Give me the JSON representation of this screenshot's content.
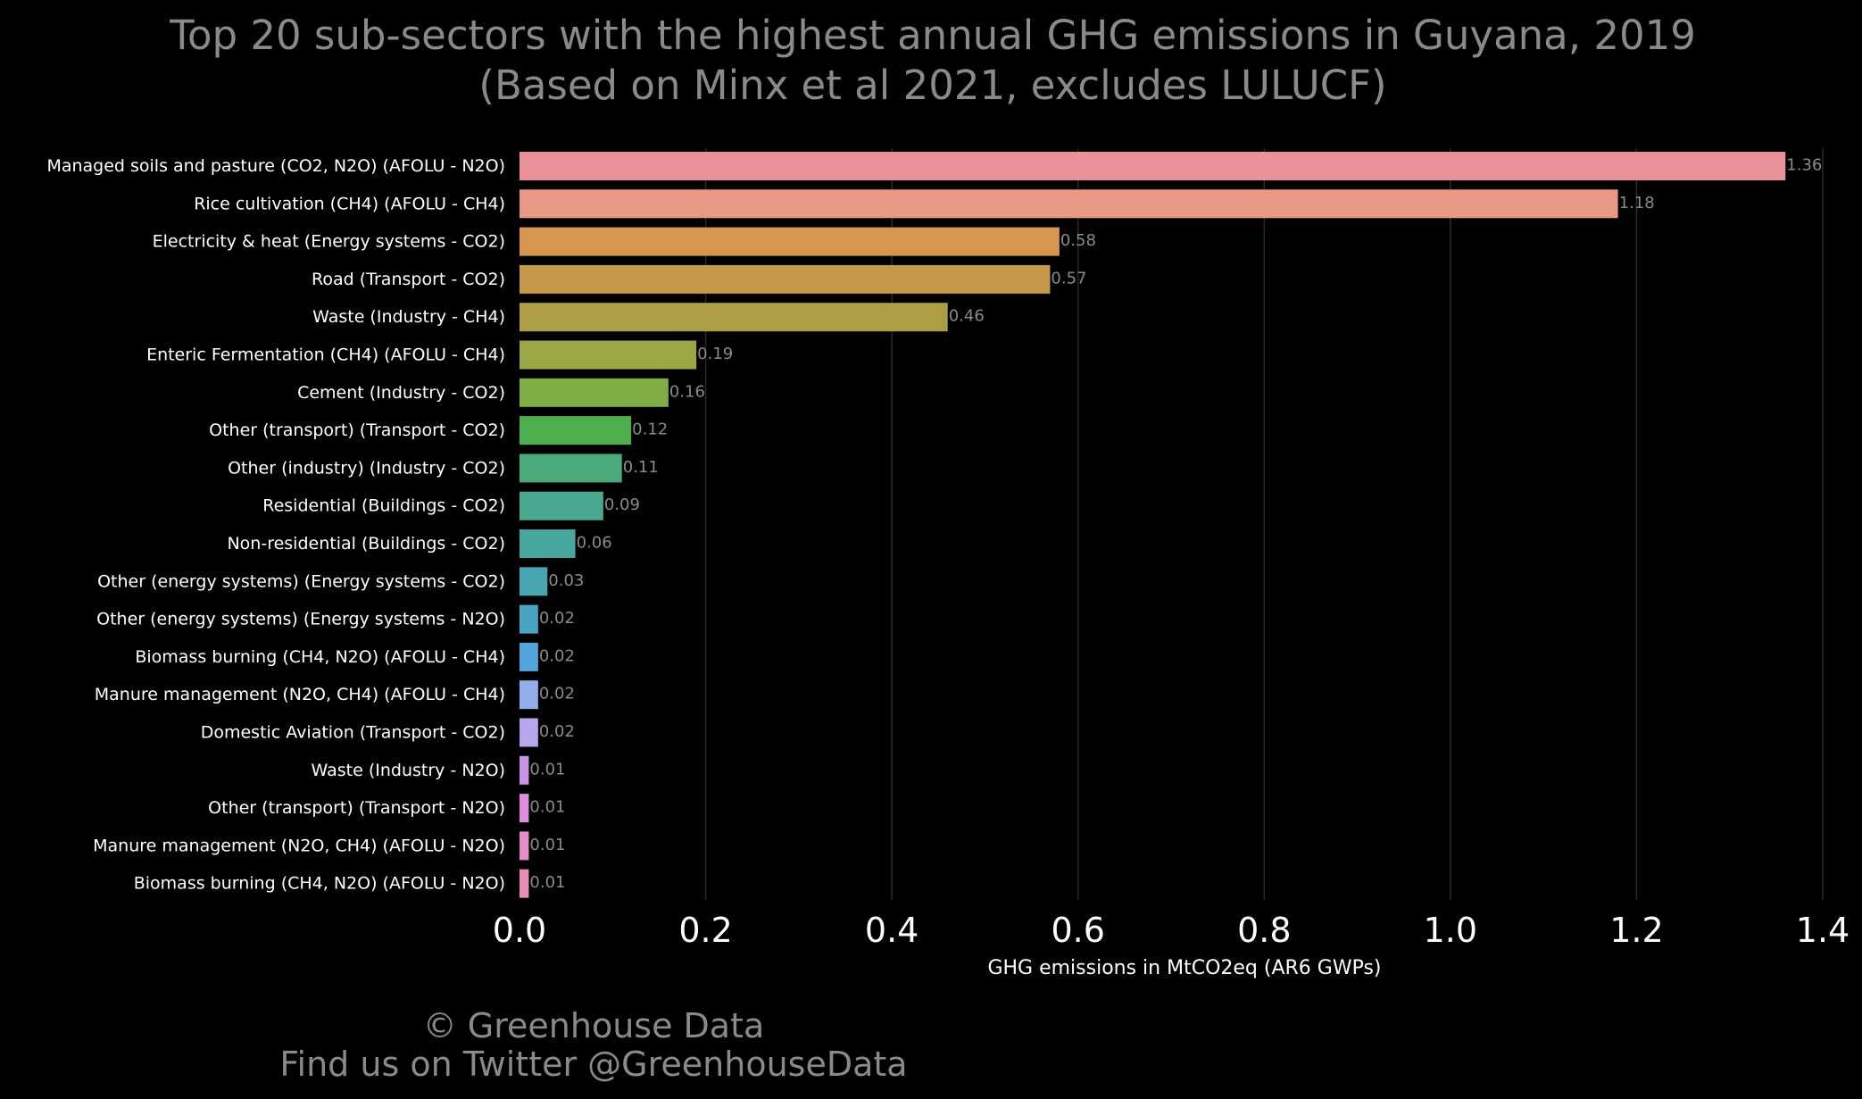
{
  "title_line_1": "Top 20 sub-sectors with the highest annual GHG emissions in Guyana, 2019",
  "title_line_2": "(Based on Minx et al 2021, excludes LULUCF)",
  "footer_line_1": "© Greenhouse Data",
  "footer_line_2": "Find us on Twitter @GreenhouseData",
  "colors": {
    "background": "#000000",
    "gridline": "#2a2a2a",
    "label_text": "#ffffff",
    "title_text": "#8a8a8a",
    "value_text": "#8a8a8a"
  },
  "chart_data": {
    "type": "bar",
    "orientation": "horizontal",
    "title": "Top 20 sub-sectors with the highest annual GHG emissions in Guyana, 2019",
    "subtitle": "(Based on Minx et al 2021, excludes LULUCF)",
    "xlabel": "GHG emissions in MtCO2eq (AR6 GWPs)",
    "ylabel": "",
    "xlim": [
      0,
      1.4
    ],
    "xticks": [
      0.0,
      0.2,
      0.4,
      0.6,
      0.8,
      1.0,
      1.2,
      1.4
    ],
    "xtick_labels": [
      "0.0",
      "0.2",
      "0.4",
      "0.6",
      "0.8",
      "1.0",
      "1.2",
      "1.4"
    ],
    "grid": "vertical",
    "categories": [
      "Managed soils and pasture (CO2, N2O) (AFOLU - N2O)",
      "Rice cultivation (CH4) (AFOLU - CH4)",
      "Electricity & heat (Energy systems - CO2)",
      "Road (Transport - CO2)",
      "Waste (Industry - CH4)",
      "Enteric Fermentation (CH4) (AFOLU - CH4)",
      "Cement (Industry - CO2)",
      "Other (transport) (Transport - CO2)",
      "Other (industry) (Industry - CO2)",
      "Residential (Buildings - CO2)",
      "Non-residential (Buildings - CO2)",
      "Other (energy systems) (Energy systems - CO2)",
      "Other (energy systems) (Energy systems - N2O)",
      "Biomass burning (CH4, N2O) (AFOLU - CH4)",
      "Manure management (N2O, CH4) (AFOLU - CH4)",
      "Domestic Aviation (Transport - CO2)",
      "Waste (Industry - N2O)",
      "Other (transport) (Transport - N2O)",
      "Manure management (N2O, CH4) (AFOLU - N2O)",
      "Biomass burning (CH4, N2O) (AFOLU - N2O)"
    ],
    "values": [
      1.36,
      1.18,
      0.58,
      0.57,
      0.46,
      0.19,
      0.16,
      0.12,
      0.11,
      0.09,
      0.06,
      0.03,
      0.02,
      0.02,
      0.02,
      0.02,
      0.01,
      0.01,
      0.01,
      0.01
    ],
    "value_labels": [
      "1.36",
      "1.18",
      "0.58",
      "0.57",
      "0.46",
      "0.19",
      "0.16",
      "0.12",
      "0.11",
      "0.09",
      "0.06",
      "0.03",
      "0.02",
      "0.02",
      "0.02",
      "0.02",
      "0.01",
      "0.01",
      "0.01",
      "0.01"
    ],
    "bar_colors": [
      "#e8919a",
      "#e89a86",
      "#d6964e",
      "#c49a4a",
      "#ad9d45",
      "#9aa744",
      "#80ad45",
      "#4cae4c",
      "#4aaa7a",
      "#48a890",
      "#48a8a0",
      "#48a6b0",
      "#48a4c0",
      "#52a6dc",
      "#92aee8",
      "#b8a6ec",
      "#c896e4",
      "#de8ee0",
      "#e68ec8",
      "#e88eb4"
    ]
  }
}
